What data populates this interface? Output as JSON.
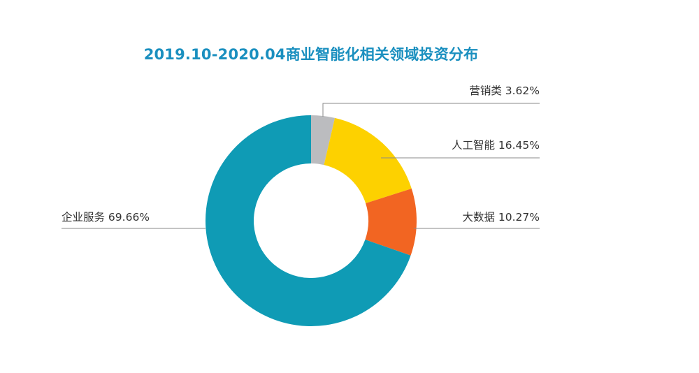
{
  "chart_data": {
    "type": "pie",
    "variant": "donut",
    "title": "2019.10-2020.04商业智能化相关领域投资分布",
    "unit": "%",
    "categories": [
      "营销类",
      "人工智能",
      "大数据",
      "企业服务"
    ],
    "values": [
      3.62,
      16.45,
      10.27,
      69.66
    ],
    "labels": [
      "营销类 3.62%",
      "人工智能 16.45%",
      "大数据 10.27%",
      "企业服务 69.66%"
    ],
    "colors": [
      "#bbbcbf",
      "#fdd100",
      "#f26522",
      "#0f9bb5"
    ],
    "start_angle": "12 o'clock",
    "direction": "clockwise",
    "legend": "none",
    "label_style": "leader lines"
  }
}
